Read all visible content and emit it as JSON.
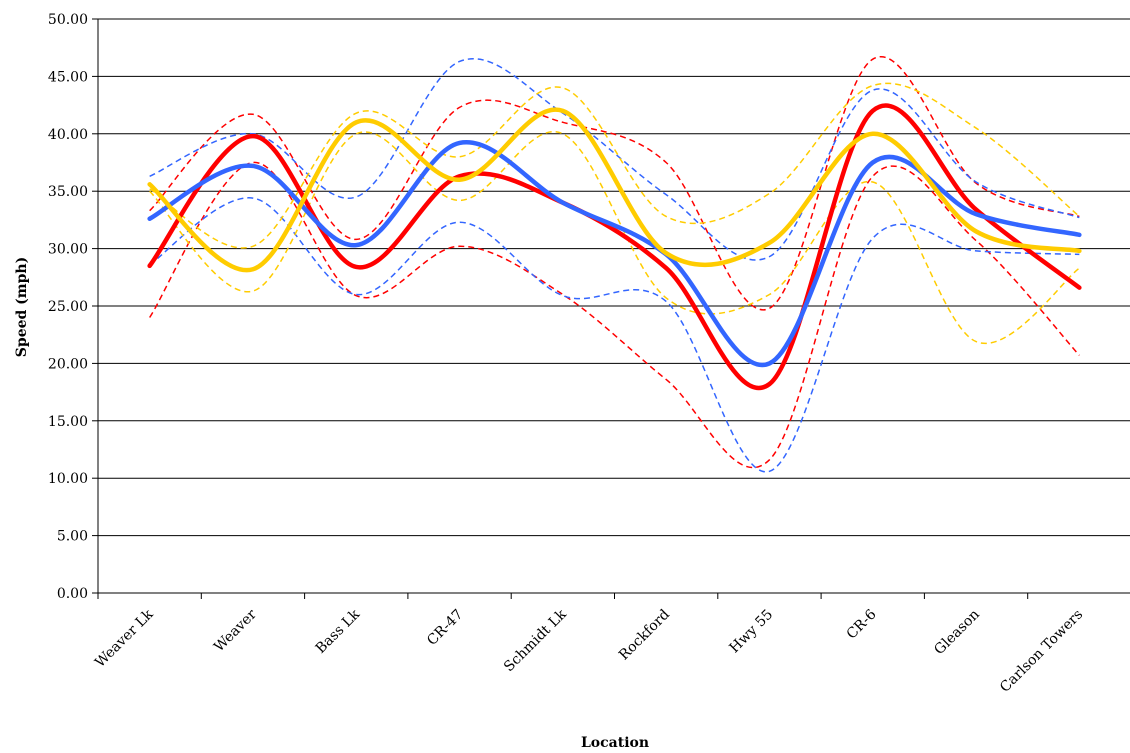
{
  "chart_data": {
    "type": "line",
    "title": "",
    "xlabel": "Location",
    "ylabel": "Speed (mph)",
    "ylim": [
      0,
      50
    ],
    "ytick_step": 5,
    "ytick_labels": [
      "0.00",
      "5.00",
      "10.00",
      "15.00",
      "20.00",
      "25.00",
      "30.00",
      "35.00",
      "40.00",
      "45.00",
      "50.00"
    ],
    "grid": "horizontal",
    "legend": "none",
    "categories": [
      "Weaver Lk",
      "Weaver",
      "Bass Lk",
      "CR-47",
      "Schmidt Lk",
      "Rockford",
      "Hwy 55",
      "CR-6",
      "Gleason",
      "Carlson Towers"
    ],
    "series": [
      {
        "color": "#ff0000",
        "style": "solid",
        "values": [
          28.5,
          39.8,
          28.4,
          36.3,
          34.0,
          28.3,
          18.2,
          42.0,
          33.4,
          26.6
        ]
      },
      {
        "color": "#ff0000",
        "style": "dashed",
        "values": [
          33.3,
          41.7,
          30.8,
          42.3,
          41.0,
          37.5,
          24.8,
          46.5,
          35.7,
          32.8
        ]
      },
      {
        "color": "#ff0000",
        "style": "dashed",
        "values": [
          24.0,
          37.5,
          25.9,
          30.2,
          26.0,
          18.6,
          11.6,
          36.3,
          30.7,
          20.7
        ]
      },
      {
        "color": "#3366ff",
        "style": "solid",
        "values": [
          32.6,
          37.2,
          30.3,
          39.2,
          34.0,
          29.5,
          20.0,
          37.5,
          33.0,
          31.2
        ]
      },
      {
        "color": "#3366ff",
        "style": "dashed",
        "values": [
          36.3,
          40.0,
          34.5,
          46.3,
          41.8,
          34.7,
          29.3,
          43.8,
          35.8,
          32.7
        ]
      },
      {
        "color": "#3366ff",
        "style": "dashed",
        "values": [
          28.6,
          34.4,
          26.0,
          32.3,
          25.9,
          25.4,
          10.6,
          30.9,
          29.8,
          29.5
        ]
      },
      {
        "color": "#ffcc00",
        "style": "solid",
        "values": [
          35.6,
          28.2,
          41.0,
          36.0,
          42.0,
          29.6,
          30.5,
          40.0,
          31.5,
          29.8
        ]
      },
      {
        "color": "#ffcc00",
        "style": "dashed",
        "values": [
          35.2,
          30.2,
          41.8,
          38.0,
          44.0,
          32.8,
          34.8,
          44.2,
          40.5,
          32.8
        ]
      },
      {
        "color": "#ffcc00",
        "style": "dashed",
        "values": [
          35.0,
          26.3,
          40.0,
          34.2,
          40.0,
          25.7,
          26.0,
          35.8,
          21.9,
          28.3
        ]
      }
    ]
  }
}
